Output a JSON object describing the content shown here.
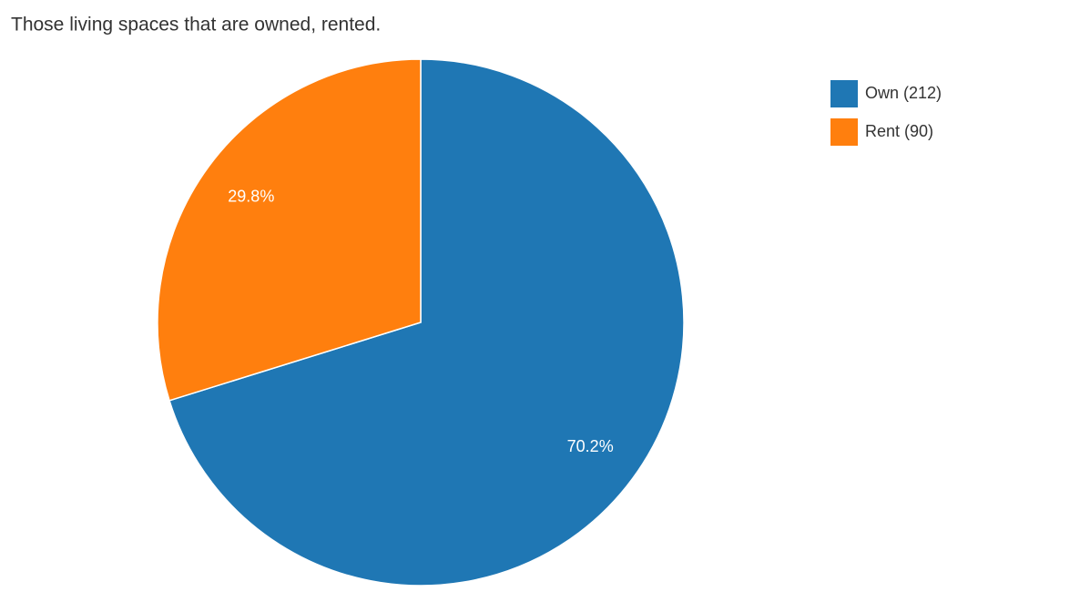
{
  "chart_data": {
    "type": "pie",
    "title": "Those living spaces that are owned, rented.",
    "categories": [
      "Own (212)",
      "Rent (90)"
    ],
    "values": [
      70.2,
      29.8
    ],
    "value_labels": [
      "70.2%",
      "29.8%"
    ],
    "colors": [
      "#1f77b4",
      "#ff7f0e"
    ],
    "legend": "top-right"
  }
}
